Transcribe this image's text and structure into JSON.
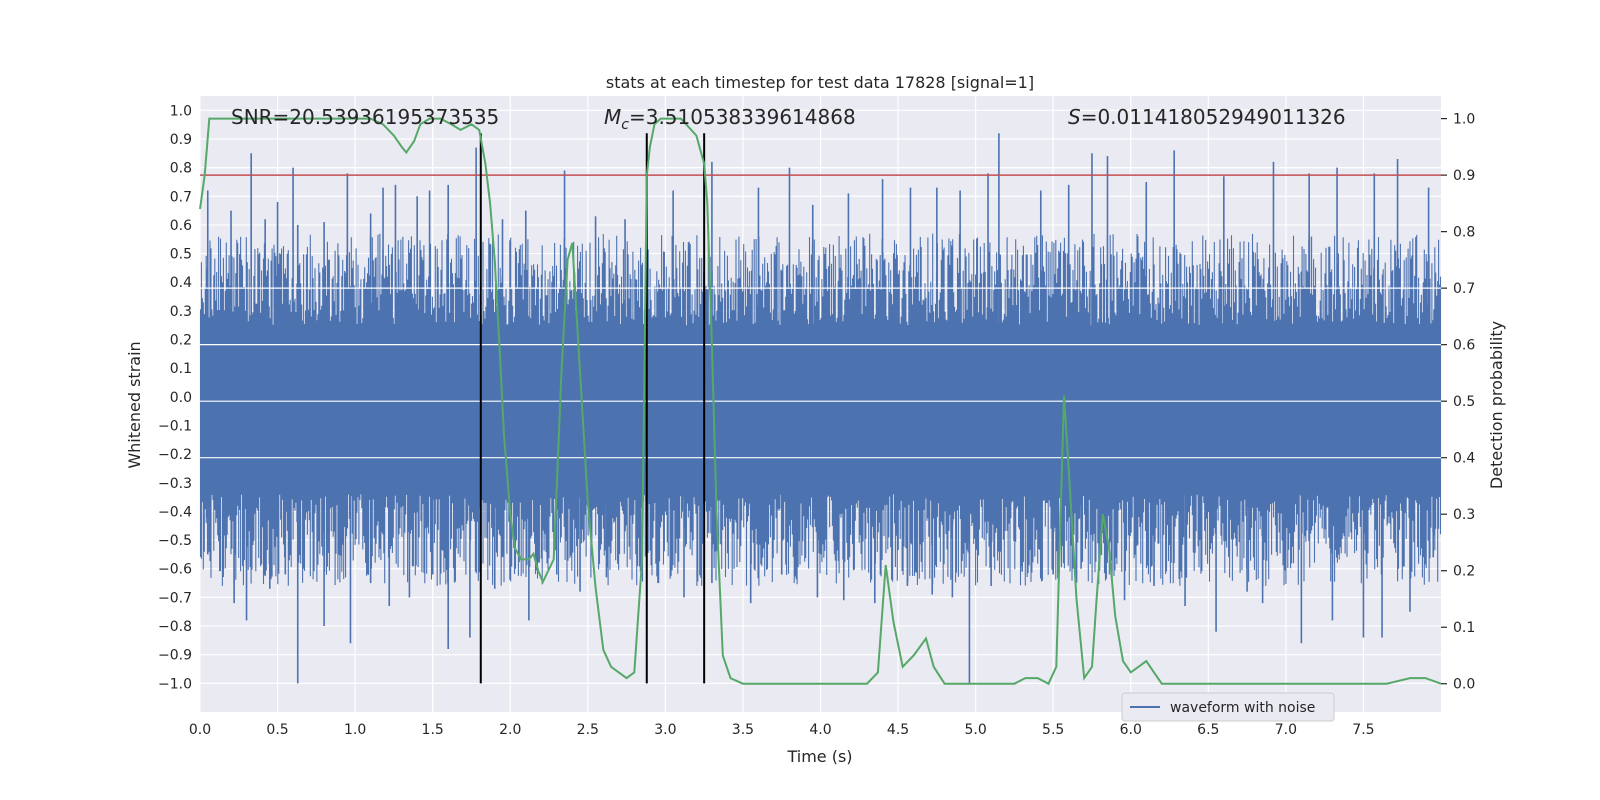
{
  "chart_data": {
    "type": "line",
    "title": "stats at each timestep for test data 17828 [signal=1]",
    "xlabel": "Time (s)",
    "ylabel": "Whitened strain",
    "y2label": "Detection probability",
    "xlim": [
      0,
      8
    ],
    "ylim": [
      -1.1,
      1.05
    ],
    "y2lim": [
      -0.05,
      1.04
    ],
    "xticks": [
      0.0,
      0.5,
      1.0,
      1.5,
      2.0,
      2.5,
      3.0,
      3.5,
      4.0,
      4.5,
      5.0,
      5.5,
      6.0,
      6.5,
      7.0,
      7.5
    ],
    "xtick_labels": [
      "0.0",
      "0.5",
      "1.0",
      "1.5",
      "2.0",
      "2.5",
      "3.0",
      "3.5",
      "4.0",
      "4.5",
      "5.0",
      "5.5",
      "6.0",
      "6.5",
      "7.0",
      "7.5"
    ],
    "yticks": [
      1.0,
      0.9,
      0.8,
      0.7,
      0.6,
      0.5,
      0.4,
      0.3,
      0.2,
      0.1,
      0.0,
      -0.1,
      -0.2,
      -0.3,
      -0.4,
      -0.5,
      -0.6,
      -0.7,
      -0.8,
      -0.9,
      -1.0
    ],
    "ytick_labels": [
      "1.0",
      "0.9",
      "0.8",
      "0.7",
      "0.6",
      "0.5",
      "0.4",
      "0.3",
      "0.2",
      "0.1",
      "0.0",
      "−0.1",
      "−0.2",
      "−0.3",
      "−0.4",
      "−0.5",
      "−0.6",
      "−0.7",
      "−0.8",
      "−0.9",
      "−1.0"
    ],
    "y2ticks": [
      1.0,
      0.9,
      0.8,
      0.7,
      0.6,
      0.5,
      0.4,
      0.3,
      0.2,
      0.1,
      0.0
    ],
    "y2tick_labels": [
      "1.0",
      "0.9",
      "0.8",
      "0.7",
      "0.6",
      "0.5",
      "0.4",
      "0.3",
      "0.2",
      "0.1",
      "0.0"
    ],
    "grid": true,
    "legend": {
      "entries": [
        "waveform with noise"
      ],
      "placement": "lower-right"
    },
    "annotations": {
      "snr": "SNR=20.53936195373535",
      "mc_symbol": "M",
      "mc_sub": "c",
      "mc_value": "=3.510538339614868",
      "s_symbol": "S",
      "s_value": "=0.011418052949011326"
    },
    "threshold": {
      "value": 0.9,
      "axis": "y2",
      "color": "#c44e52"
    },
    "event_markers": {
      "times": [
        1.81,
        2.88,
        3.25
      ],
      "color": "#000000"
    },
    "waveform": {
      "name": "waveform with noise",
      "color": "#4c72b0",
      "note": "dense noisy strain; envelope sampled",
      "envelope_upper_typical": 0.33,
      "envelope_lower_typical": -0.42,
      "spikes_up": [
        [
          0.05,
          0.72
        ],
        [
          0.2,
          0.65
        ],
        [
          0.33,
          0.85
        ],
        [
          0.42,
          0.62
        ],
        [
          0.5,
          0.68
        ],
        [
          0.6,
          0.8
        ],
        [
          0.63,
          0.6
        ],
        [
          0.8,
          0.61
        ],
        [
          0.95,
          0.78
        ],
        [
          1.1,
          0.64
        ],
        [
          1.18,
          0.73
        ],
        [
          1.26,
          0.74
        ],
        [
          1.4,
          0.7
        ],
        [
          1.48,
          0.72
        ],
        [
          1.6,
          0.74
        ],
        [
          1.78,
          0.87
        ],
        [
          1.95,
          0.62
        ],
        [
          2.1,
          0.65
        ],
        [
          2.35,
          0.79
        ],
        [
          2.55,
          0.63
        ],
        [
          2.74,
          0.62
        ],
        [
          3.05,
          0.72
        ],
        [
          3.3,
          0.82
        ],
        [
          3.6,
          0.73
        ],
        [
          3.8,
          0.8
        ],
        [
          3.95,
          0.67
        ],
        [
          4.18,
          0.71
        ],
        [
          4.4,
          0.76
        ],
        [
          4.58,
          0.73
        ],
        [
          4.75,
          0.73
        ],
        [
          4.9,
          0.72
        ],
        [
          5.08,
          0.78
        ],
        [
          5.15,
          0.92
        ],
        [
          5.42,
          0.72
        ],
        [
          5.6,
          0.74
        ],
        [
          5.75,
          0.85
        ],
        [
          5.85,
          0.84
        ],
        [
          6.1,
          0.75
        ],
        [
          6.28,
          0.86
        ],
        [
          6.6,
          0.77
        ],
        [
          6.92,
          0.82
        ],
        [
          7.15,
          0.78
        ],
        [
          7.33,
          0.8
        ],
        [
          7.57,
          0.78
        ],
        [
          7.72,
          0.83
        ],
        [
          7.92,
          0.73
        ]
      ],
      "spikes_down": [
        [
          0.05,
          -0.55
        ],
        [
          0.15,
          -0.6
        ],
        [
          0.22,
          -0.72
        ],
        [
          0.3,
          -0.78
        ],
        [
          0.45,
          -0.67
        ],
        [
          0.55,
          -0.62
        ],
        [
          0.63,
          -1.0
        ],
        [
          0.8,
          -0.8
        ],
        [
          0.97,
          -0.86
        ],
        [
          1.1,
          -0.65
        ],
        [
          1.22,
          -0.73
        ],
        [
          1.35,
          -0.7
        ],
        [
          1.5,
          -0.62
        ],
        [
          1.6,
          -0.88
        ],
        [
          1.74,
          -0.84
        ],
        [
          1.9,
          -0.67
        ],
        [
          2.12,
          -0.78
        ],
        [
          2.3,
          -0.62
        ],
        [
          2.45,
          -0.68
        ],
        [
          2.62,
          -0.63
        ],
        [
          2.84,
          -0.61
        ],
        [
          3.12,
          -0.7
        ],
        [
          3.3,
          -0.65
        ],
        [
          3.55,
          -0.72
        ],
        [
          3.75,
          -0.62
        ],
        [
          3.98,
          -0.7
        ],
        [
          4.15,
          -0.71
        ],
        [
          4.35,
          -0.72
        ],
        [
          4.56,
          -0.66
        ],
        [
          4.72,
          -0.69
        ],
        [
          4.85,
          -0.7
        ],
        [
          4.96,
          -1.0
        ],
        [
          5.1,
          -0.66
        ],
        [
          5.3,
          -0.61
        ],
        [
          5.5,
          -0.62
        ],
        [
          5.68,
          -0.6
        ],
        [
          5.96,
          -0.71
        ],
        [
          6.15,
          -0.66
        ],
        [
          6.35,
          -0.73
        ],
        [
          6.55,
          -0.82
        ],
        [
          6.75,
          -0.68
        ],
        [
          6.85,
          -0.72
        ],
        [
          7.1,
          -0.86
        ],
        [
          7.3,
          -0.78
        ],
        [
          7.5,
          -0.84
        ],
        [
          7.62,
          -0.84
        ],
        [
          7.8,
          -0.75
        ],
        [
          7.95,
          -0.56
        ]
      ]
    },
    "detection_probability": {
      "color": "#55a868",
      "points": [
        [
          0.0,
          0.84
        ],
        [
          0.03,
          0.9
        ],
        [
          0.06,
          1.0
        ],
        [
          0.12,
          1.0
        ],
        [
          0.4,
          1.0
        ],
        [
          0.8,
          1.0
        ],
        [
          1.0,
          1.0
        ],
        [
          1.1,
          1.0
        ],
        [
          1.18,
          0.99
        ],
        [
          1.25,
          0.97
        ],
        [
          1.3,
          0.95
        ],
        [
          1.33,
          0.94
        ],
        [
          1.38,
          0.96
        ],
        [
          1.42,
          0.99
        ],
        [
          1.48,
          1.0
        ],
        [
          1.55,
          1.0
        ],
        [
          1.62,
          0.99
        ],
        [
          1.68,
          0.98
        ],
        [
          1.75,
          0.99
        ],
        [
          1.8,
          0.98
        ],
        [
          1.84,
          0.92
        ],
        [
          1.87,
          0.85
        ],
        [
          1.9,
          0.75
        ],
        [
          1.93,
          0.6
        ],
        [
          1.96,
          0.44
        ],
        [
          2.0,
          0.3
        ],
        [
          2.03,
          0.24
        ],
        [
          2.07,
          0.22
        ],
        [
          2.12,
          0.22
        ],
        [
          2.15,
          0.23
        ],
        [
          2.18,
          0.2
        ],
        [
          2.21,
          0.18
        ],
        [
          2.28,
          0.22
        ],
        [
          2.3,
          0.35
        ],
        [
          2.33,
          0.55
        ],
        [
          2.37,
          0.75
        ],
        [
          2.4,
          0.78
        ],
        [
          2.45,
          0.55
        ],
        [
          2.5,
          0.32
        ],
        [
          2.55,
          0.17
        ],
        [
          2.6,
          0.06
        ],
        [
          2.65,
          0.03
        ],
        [
          2.7,
          0.02
        ],
        [
          2.75,
          0.01
        ],
        [
          2.8,
          0.02
        ],
        [
          2.85,
          0.22
        ],
        [
          2.88,
          0.9
        ],
        [
          2.9,
          0.95
        ],
        [
          2.93,
          0.99
        ],
        [
          2.97,
          1.0
        ],
        [
          3.0,
          1.0
        ],
        [
          3.05,
          1.0
        ],
        [
          3.1,
          1.0
        ],
        [
          3.2,
          0.97
        ],
        [
          3.25,
          0.92
        ],
        [
          3.27,
          0.85
        ],
        [
          3.3,
          0.6
        ],
        [
          3.33,
          0.3
        ],
        [
          3.37,
          0.05
        ],
        [
          3.42,
          0.01
        ],
        [
          3.5,
          0.0
        ],
        [
          3.6,
          0.0
        ],
        [
          4.0,
          0.0
        ],
        [
          4.2,
          0.0
        ],
        [
          4.3,
          0.0
        ],
        [
          4.37,
          0.02
        ],
        [
          4.42,
          0.21
        ],
        [
          4.47,
          0.11
        ],
        [
          4.53,
          0.03
        ],
        [
          4.6,
          0.05
        ],
        [
          4.68,
          0.08
        ],
        [
          4.73,
          0.03
        ],
        [
          4.8,
          0.0
        ],
        [
          4.9,
          0.0
        ],
        [
          5.1,
          0.0
        ],
        [
          5.25,
          0.0
        ],
        [
          5.32,
          0.01
        ],
        [
          5.4,
          0.01
        ],
        [
          5.47,
          0.0
        ],
        [
          5.52,
          0.03
        ],
        [
          5.57,
          0.51
        ],
        [
          5.6,
          0.38
        ],
        [
          5.65,
          0.15
        ],
        [
          5.7,
          0.01
        ],
        [
          5.75,
          0.03
        ],
        [
          5.78,
          0.15
        ],
        [
          5.82,
          0.3
        ],
        [
          5.86,
          0.24
        ],
        [
          5.9,
          0.12
        ],
        [
          5.95,
          0.04
        ],
        [
          6.0,
          0.02
        ],
        [
          6.05,
          0.03
        ],
        [
          6.1,
          0.04
        ],
        [
          6.15,
          0.02
        ],
        [
          6.2,
          0.0
        ],
        [
          6.3,
          0.0
        ],
        [
          6.5,
          0.0
        ],
        [
          7.0,
          0.0
        ],
        [
          7.3,
          0.0
        ],
        [
          7.5,
          0.0
        ],
        [
          7.65,
          0.0
        ],
        [
          7.8,
          0.01
        ],
        [
          7.9,
          0.01
        ],
        [
          8.0,
          0.0
        ]
      ]
    }
  }
}
